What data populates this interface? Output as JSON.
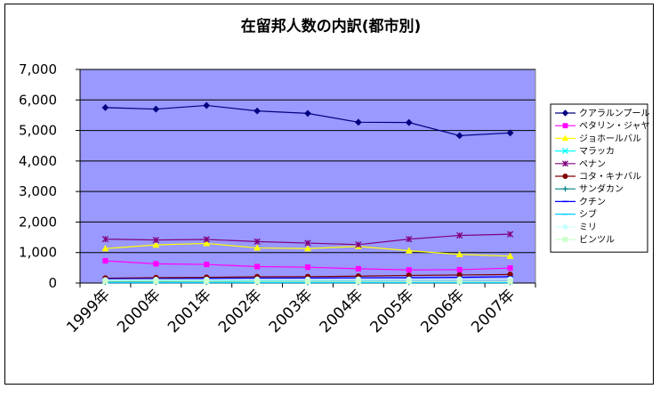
{
  "chart_data": {
    "type": "line",
    "title": "在留邦人数の内訳(都市別)",
    "xlabel": "",
    "ylabel": "",
    "categories": [
      "1999年",
      "2000年",
      "2001年",
      "2002年",
      "2003年",
      "2004年",
      "2005年",
      "2006年",
      "2007年"
    ],
    "ylim": [
      0,
      7000
    ],
    "yticks": [
      0,
      1000,
      2000,
      3000,
      4000,
      5000,
      6000,
      7000
    ],
    "ytick_labels": [
      "0",
      "1,000",
      "2,000",
      "3,000",
      "4,000",
      "5,000",
      "6,000",
      "7,000"
    ],
    "grid": true,
    "legend_position": "right",
    "plot_background": "#9999ff",
    "series": [
      {
        "name": "クアラルンプール",
        "color": "#000080",
        "marker": "diamond",
        "values": [
          5750,
          5700,
          5820,
          5640,
          5560,
          5270,
          5260,
          4830,
          4920
        ]
      },
      {
        "name": "ペタリン・ジャヤ",
        "color": "#ff00ff",
        "marker": "square",
        "values": [
          730,
          630,
          610,
          540,
          520,
          470,
          430,
          440,
          490
        ]
      },
      {
        "name": "ジョホールバル",
        "color": "#ffff00",
        "marker": "triangle",
        "values": [
          1130,
          1250,
          1300,
          1150,
          1130,
          1200,
          1060,
          940,
          880
        ]
      },
      {
        "name": "マラッカ",
        "color": "#00ffff",
        "marker": "x",
        "values": [
          80,
          75,
          70,
          70,
          65,
          65,
          60,
          60,
          55
        ]
      },
      {
        "name": "ペナン",
        "color": "#800080",
        "marker": "star",
        "values": [
          1440,
          1410,
          1430,
          1360,
          1310,
          1260,
          1440,
          1560,
          1600
        ]
      },
      {
        "name": "コタ・キナバル",
        "color": "#800000",
        "marker": "circle",
        "values": [
          160,
          175,
          185,
          205,
          210,
          225,
          250,
          265,
          280
        ]
      },
      {
        "name": "サンダカン",
        "color": "#008080",
        "marker": "plus",
        "values": [
          30,
          30,
          28,
          28,
          25,
          25,
          25,
          25,
          25
        ]
      },
      {
        "name": "クチン",
        "color": "#0000ff",
        "marker": "dash",
        "values": [
          140,
          140,
          150,
          160,
          165,
          170,
          175,
          185,
          210
        ]
      },
      {
        "name": "シブ",
        "color": "#00ccff",
        "marker": "dash",
        "values": [
          10,
          10,
          10,
          10,
          10,
          10,
          10,
          10,
          10
        ]
      },
      {
        "name": "ミリ",
        "color": "#ccffff",
        "marker": "circle",
        "values": [
          100,
          110,
          115,
          120,
          120,
          125,
          120,
          125,
          130
        ]
      },
      {
        "name": "ビンツル",
        "color": "#ccffcc",
        "marker": "square",
        "values": [
          60,
          60,
          58,
          55,
          55,
          55,
          52,
          52,
          50
        ]
      }
    ]
  }
}
